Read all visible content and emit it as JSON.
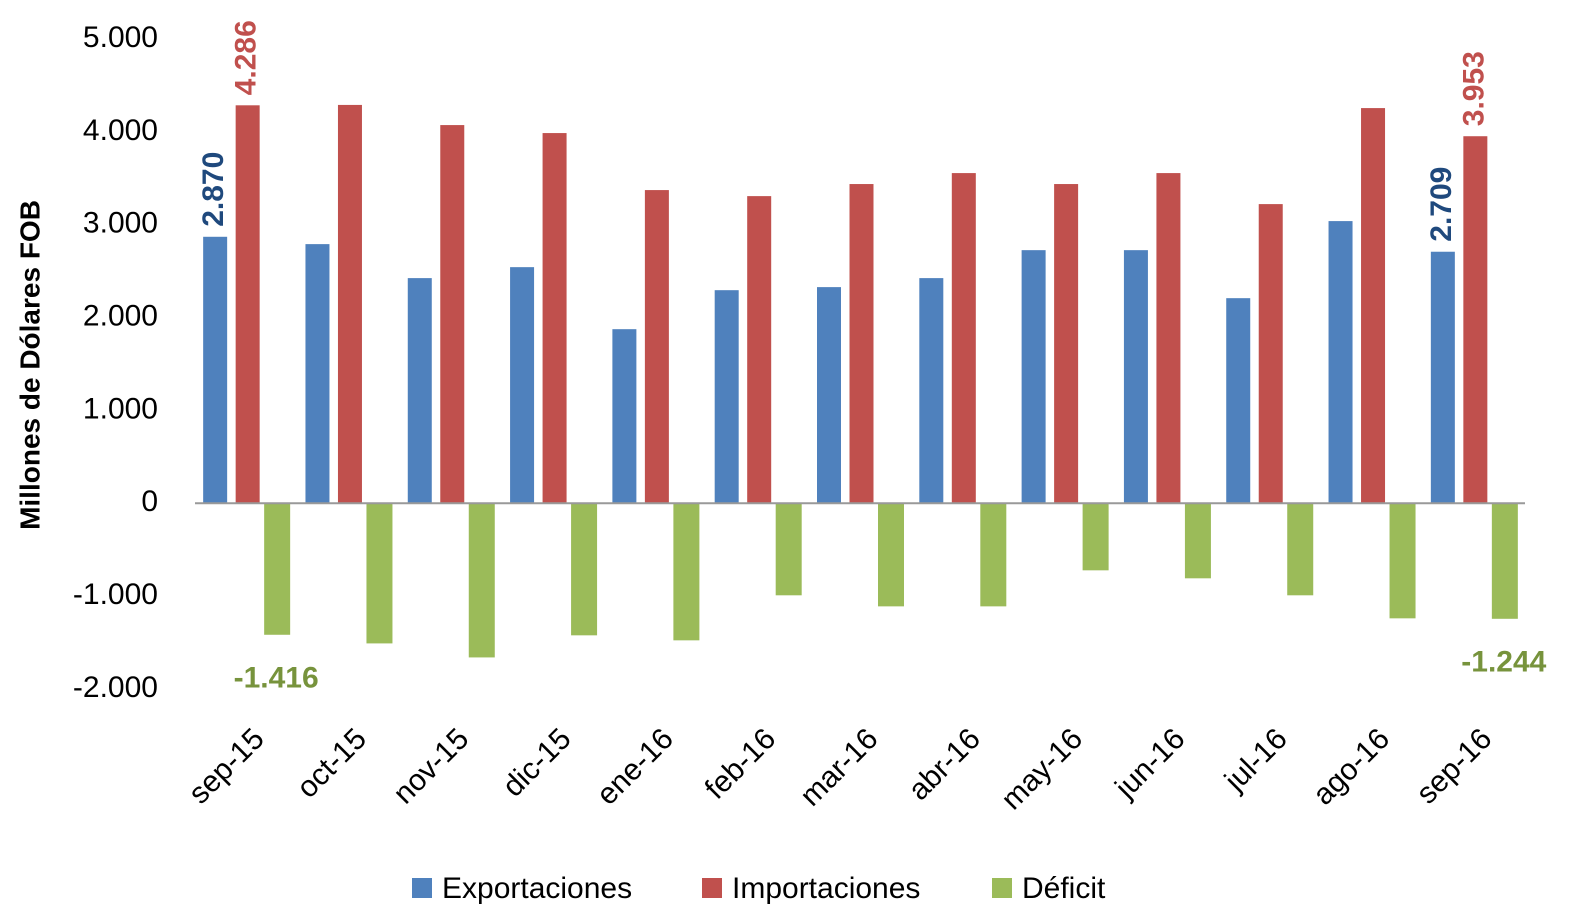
{
  "chart_data": {
    "type": "bar",
    "y_label": "Millones de Dólares FOB",
    "categories": [
      "sep-15",
      "oct-15",
      "nov-15",
      "dic-15",
      "ene-16",
      "feb-16",
      "mar-16",
      "abr-16",
      "may-16",
      "jun-16",
      "jul-16",
      "ago-16",
      "sep-16"
    ],
    "series": [
      {
        "name": "Exportaciones",
        "color": "#4f81bd",
        "label_color": "#1f497d",
        "values": [
          2870,
          2791,
          2425,
          2543,
          1875,
          2295,
          2328,
          2425,
          2726,
          2726,
          2209,
          3039,
          2709
        ],
        "value_labels": [
          "2.870",
          null,
          null,
          null,
          null,
          null,
          null,
          null,
          null,
          null,
          null,
          null,
          "2.709"
        ]
      },
      {
        "name": "Importaciones",
        "color": "#c0504d",
        "label_color": "#c0504d",
        "values": [
          4286,
          4290,
          4073,
          3987,
          3373,
          3308,
          3438,
          3556,
          3438,
          3556,
          3222,
          4256,
          3953
        ],
        "value_labels": [
          "4.286",
          null,
          null,
          null,
          null,
          null,
          null,
          null,
          null,
          null,
          null,
          null,
          "3.953"
        ]
      },
      {
        "name": "Déficit",
        "color": "#9bbb59",
        "label_color": "#77933c",
        "values": [
          -1416,
          -1509,
          -1660,
          -1422,
          -1476,
          -991,
          -1110,
          -1110,
          -722,
          -808,
          -991,
          -1239,
          -1244
        ],
        "value_labels": [
          "-1.416",
          null,
          null,
          null,
          null,
          null,
          null,
          null,
          null,
          null,
          null,
          null,
          "-1.244"
        ]
      }
    ],
    "ylim": [
      -2000,
      5000
    ],
    "yticks": [
      {
        "value": 5000,
        "label": "5.000"
      },
      {
        "value": 4000,
        "label": "4.000"
      },
      {
        "value": 3000,
        "label": "3.000"
      },
      {
        "value": 2000,
        "label": "2.000"
      },
      {
        "value": 1000,
        "label": "1.000"
      },
      0,
      {
        "value": -1000,
        "label": "-1.000"
      },
      {
        "value": -2000,
        "label": "-2.000"
      }
    ],
    "grid": false,
    "legend": "bottom"
  }
}
